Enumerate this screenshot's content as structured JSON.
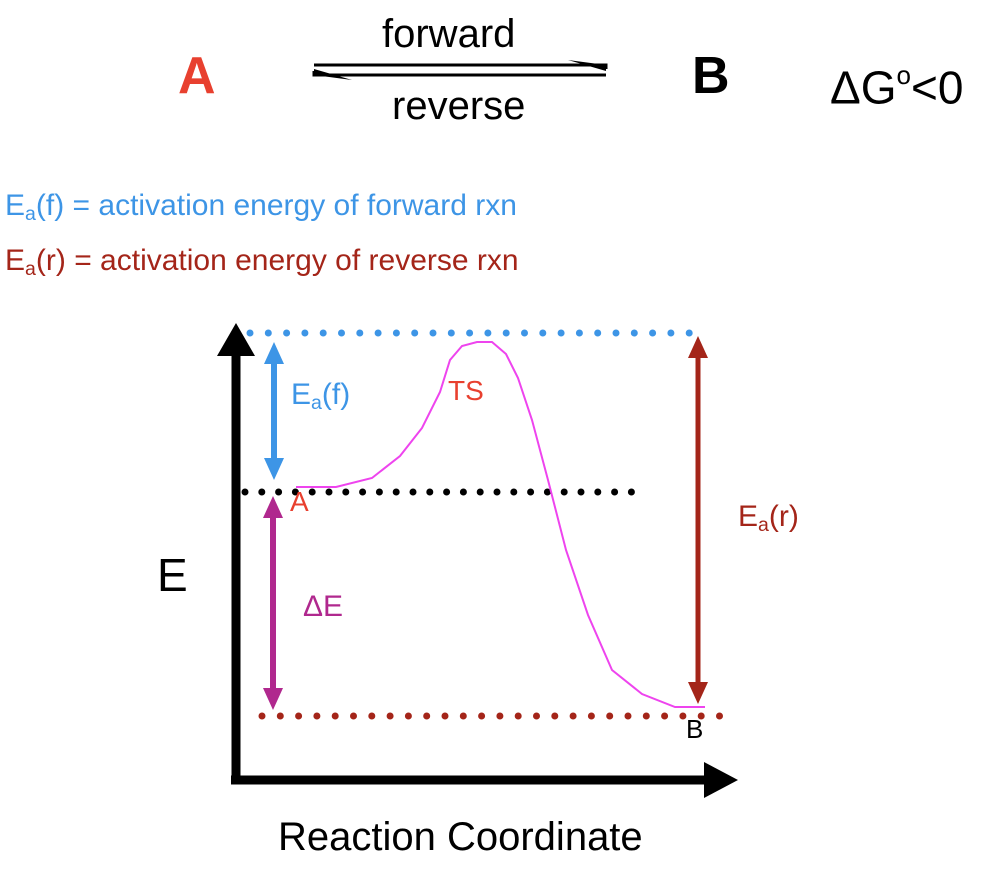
{
  "reaction": {
    "species_a": "A",
    "species_b": "B",
    "arrow_top_label": "forward",
    "arrow_bottom_label": "reverse",
    "delta_g_symbol": "ΔG",
    "delta_g_superscript": "o",
    "delta_g_condition": "<0"
  },
  "definitions": {
    "forward": {
      "symbol": "E",
      "subscript": "a",
      "arg": "(f)",
      "text": " = activation energy of forward rxn"
    },
    "reverse": {
      "symbol": "E",
      "subscript": "a",
      "arg": "(r)",
      "text": " = activation energy of reverse rxn"
    }
  },
  "diagram": {
    "y_axis_label": "E",
    "x_axis_label": "Reaction Coordinate",
    "ea_forward": {
      "symbol": "E",
      "subscript": "a",
      "arg": "(f)"
    },
    "ea_reverse": {
      "symbol": "E",
      "subscript": "a",
      "arg": "(r)"
    },
    "transition_state_label": "TS",
    "reactant_label": "A",
    "product_label": "B",
    "delta_e_label": "ΔE"
  },
  "colors": {
    "reactant_red": "#e8402f",
    "forward_blue": "#3d95e6",
    "reverse_darkred": "#a42519",
    "delta_e_magenta": "#b0288e",
    "curve_pink": "#ee44ee",
    "axis_black": "#000000"
  }
}
